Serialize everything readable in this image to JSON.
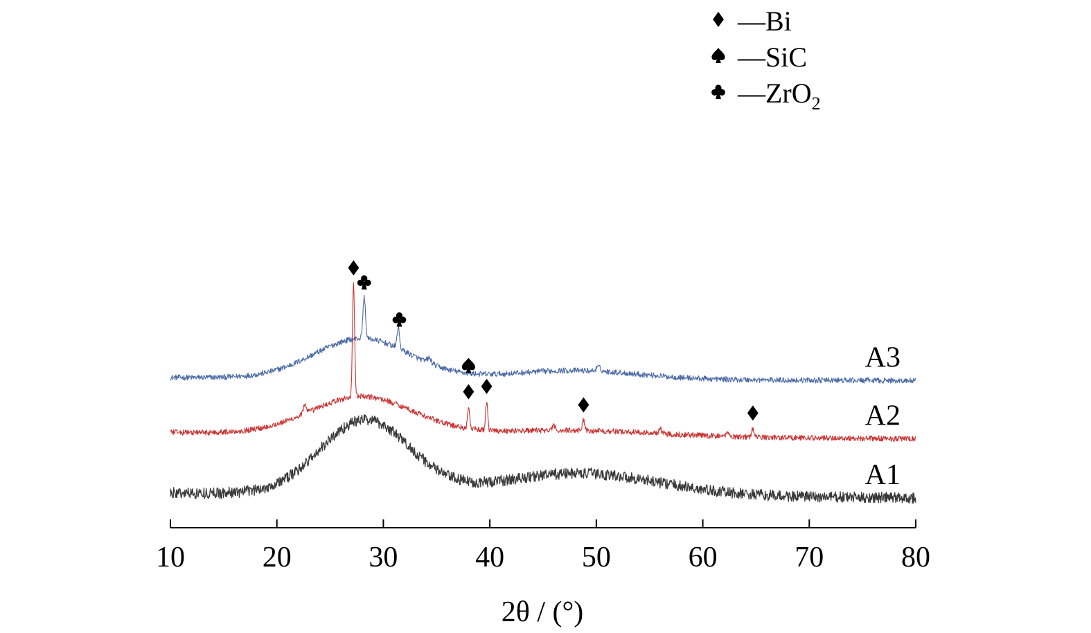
{
  "chart_data": {
    "type": "line",
    "xlabel": "2θ / (°)",
    "ylabel": "",
    "xlim": [
      10,
      80
    ],
    "xticks": [
      10,
      20,
      30,
      40,
      50,
      60,
      70,
      80
    ],
    "tick_labels": [
      "10",
      "20",
      "30",
      "40",
      "50",
      "60",
      "70",
      "80"
    ],
    "y_axis_visible": false,
    "grid": false,
    "legend": {
      "placement": "top-right",
      "entries": [
        {
          "marker": "diamond",
          "label": "—Bi"
        },
        {
          "marker": "spade",
          "label": "—SiC"
        },
        {
          "marker": "club",
          "label": "—ZrO",
          "label_sub": "2"
        }
      ]
    },
    "series": [
      {
        "name": "A3",
        "color": "#4a6aa8",
        "noise": 0.7,
        "baseline_start": 0,
        "baseline_end": -0.4,
        "broad_peaks": [
          [
            28,
            4.5,
            5.0
          ],
          [
            48,
            6.0,
            1.1
          ]
        ],
        "sharp_peaks": [
          [
            28.2,
            0.12,
            5.2
          ],
          [
            31.4,
            0.12,
            2.6
          ],
          [
            34.3,
            0.2,
            0.6
          ],
          [
            50.2,
            0.2,
            0.5
          ]
        ],
        "offset": 14.6,
        "markers": [
          {
            "x": 28.2,
            "type": "club"
          },
          {
            "x": 31.5,
            "type": "club"
          }
        ]
      },
      {
        "name": "A2",
        "color": "#cc3333",
        "noise": 0.7,
        "baseline_start": 0.2,
        "baseline_end": -0.6,
        "broad_peaks": [
          [
            28,
            4.8,
            4.7
          ],
          [
            48,
            7.5,
            0.7
          ]
        ],
        "sharp_peaks": [
          [
            27.2,
            0.1,
            14.3
          ],
          [
            22.6,
            0.15,
            1.0
          ],
          [
            38.0,
            0.1,
            2.7
          ],
          [
            39.7,
            0.1,
            3.6
          ],
          [
            48.8,
            0.12,
            1.3
          ],
          [
            46.0,
            0.15,
            0.5
          ],
          [
            56.0,
            0.15,
            0.6
          ],
          [
            62.3,
            0.1,
            0.7
          ],
          [
            64.7,
            0.1,
            1.1
          ]
        ],
        "offset": 7.5,
        "markers": [
          {
            "x": 27.2,
            "type": "diamond"
          },
          {
            "x": 38.0,
            "type": "diamond"
          },
          {
            "x": 38.0,
            "type": "spade"
          },
          {
            "x": 39.7,
            "type": "diamond"
          },
          {
            "x": 48.8,
            "type": "diamond"
          },
          {
            "x": 64.7,
            "type": "diamond"
          }
        ]
      },
      {
        "name": "A1",
        "color": "#3a3a3a",
        "noise": 1.4,
        "baseline_start": 0.1,
        "baseline_end": -0.5,
        "broad_peaks": [
          [
            28.3,
            4.2,
            9.3
          ],
          [
            48.5,
            7.5,
            2.8
          ]
        ],
        "sharp_peaks": [],
        "offset": 0,
        "markers": []
      }
    ]
  }
}
